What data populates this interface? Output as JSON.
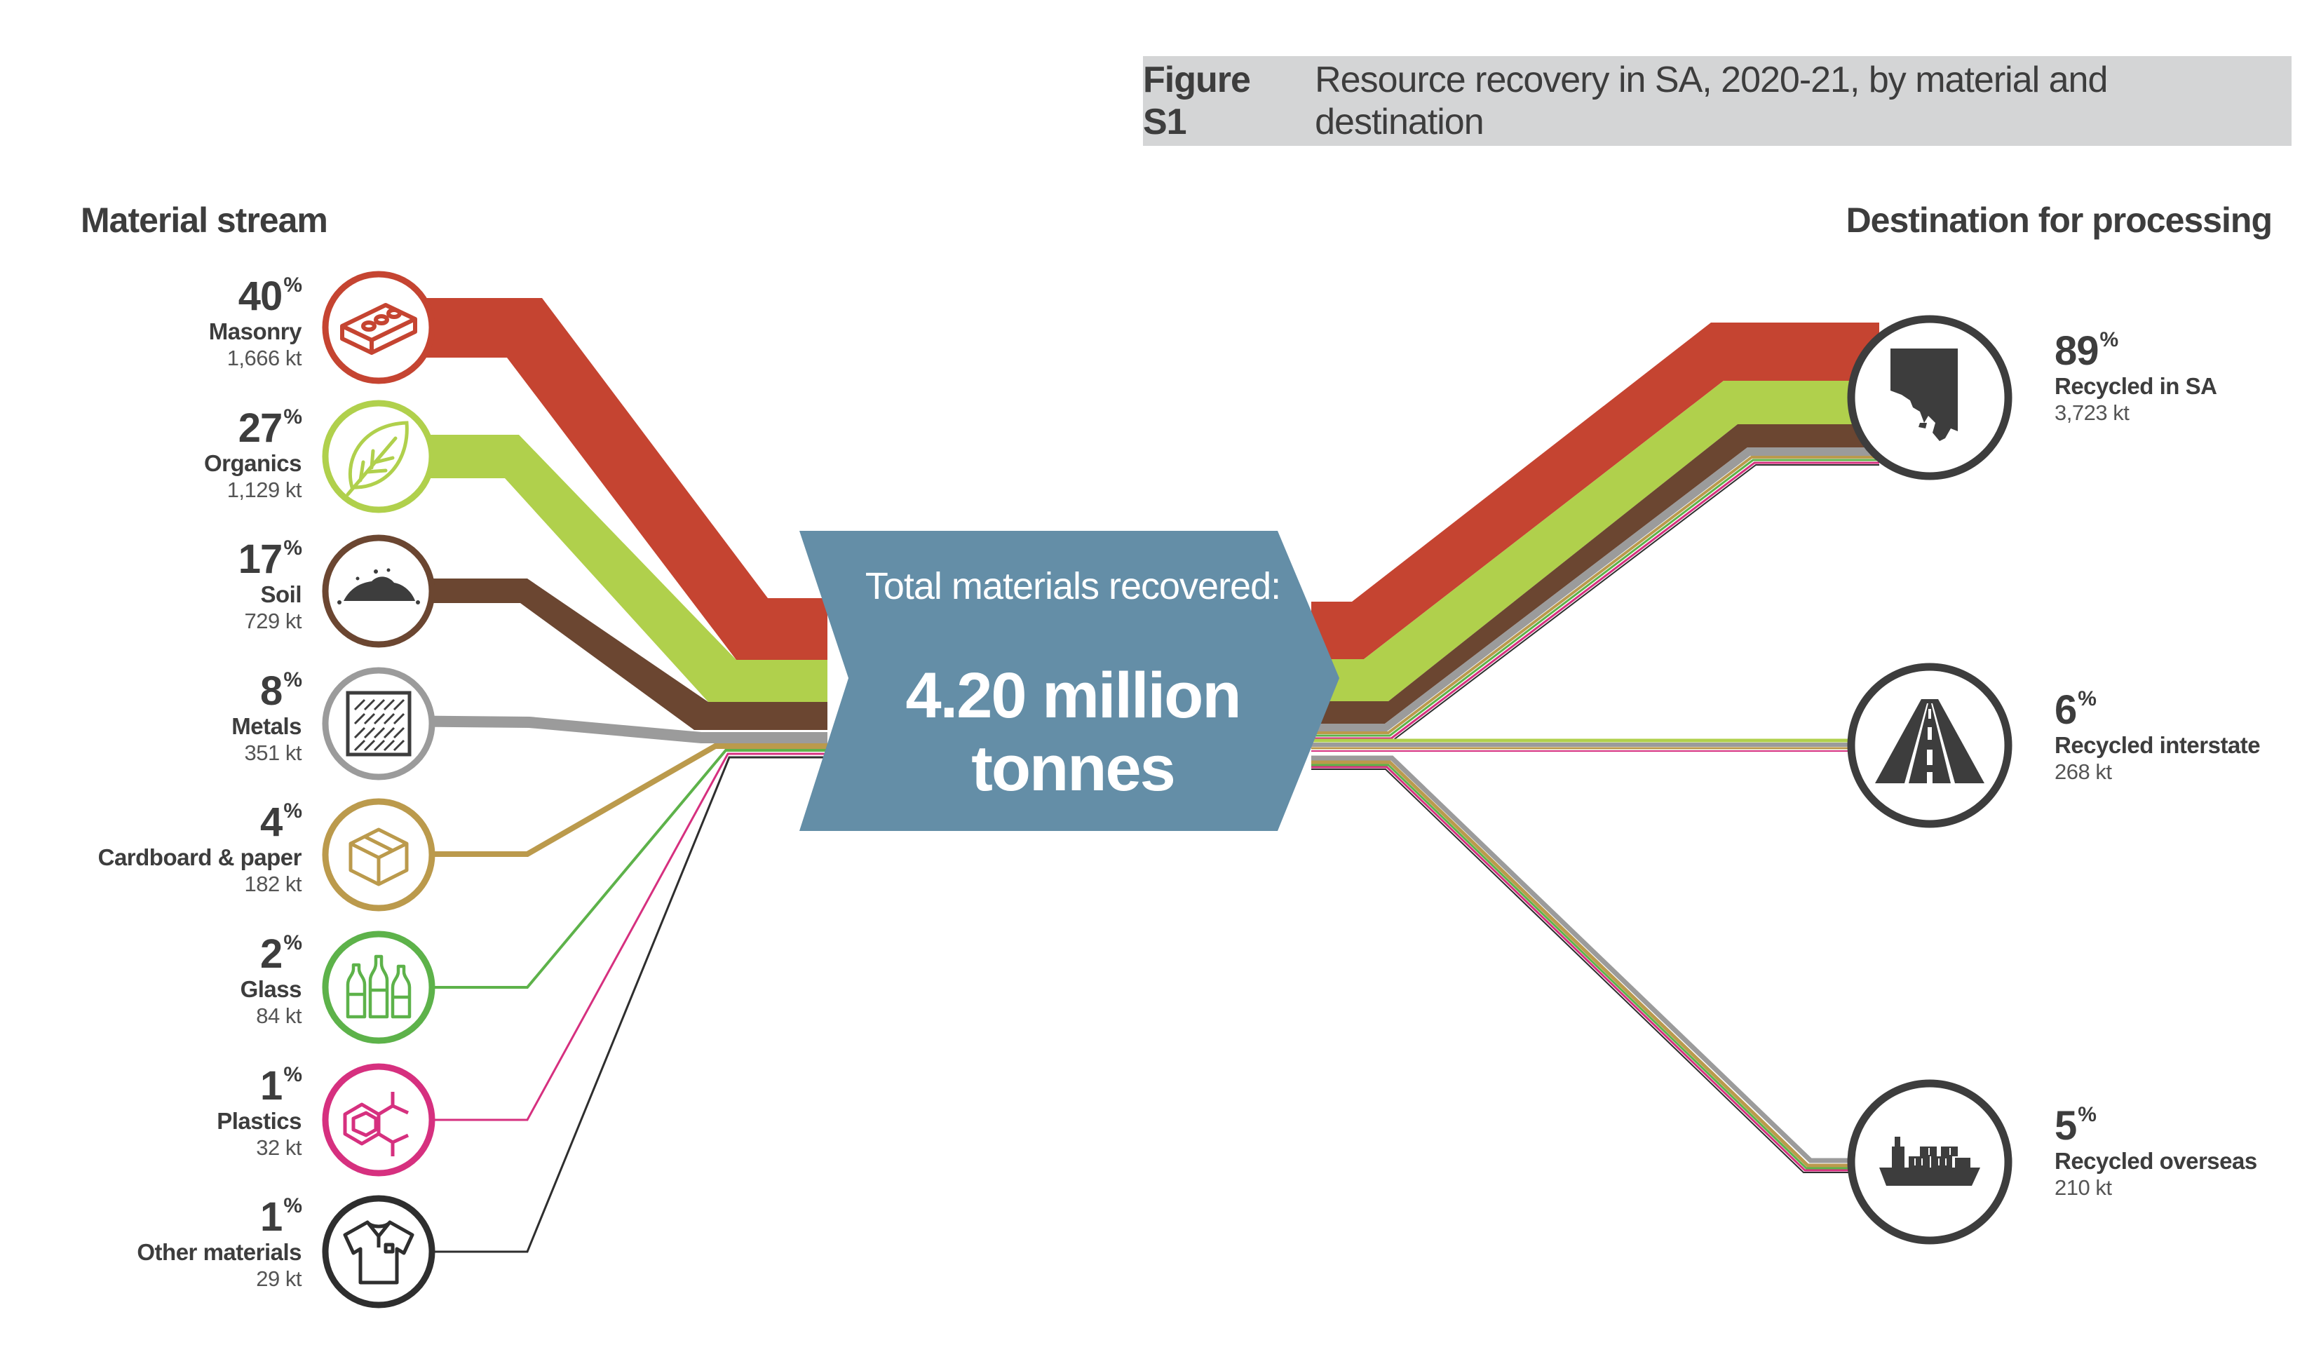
{
  "figure": {
    "number": "Figure S1",
    "title": "Resource recovery in SA, 2020-21, by material and destination"
  },
  "headings": {
    "left": "Material stream",
    "right": "Destination for processing"
  },
  "center": {
    "title": "Total materials recovered:",
    "value": "4.20 million tonnes",
    "fill_color": "#648ea7"
  },
  "materials": [
    {
      "percent": "40",
      "name": "Masonry",
      "amount": "1,666 kt",
      "color": "#c54431",
      "icon": "brick-icon"
    },
    {
      "percent": "27",
      "name": "Organics",
      "amount": "1,129 kt",
      "color": "#b0d04c",
      "icon": "leaf-icon"
    },
    {
      "percent": "17",
      "name": "Soil",
      "amount": "729 kt",
      "color": "#6b4631",
      "icon": "soil-pile-icon"
    },
    {
      "percent": "8",
      "name": "Metals",
      "amount": "351 kt",
      "color": "#9b9b9b",
      "icon": "metal-plate-icon"
    },
    {
      "percent": "4",
      "name": "Cardboard & paper",
      "amount": "182 kt",
      "color": "#bb9a4c",
      "icon": "box-icon"
    },
    {
      "percent": "2",
      "name": "Glass",
      "amount": "84 kt",
      "color": "#5db24a",
      "icon": "bottles-icon"
    },
    {
      "percent": "1",
      "name": "Plastics",
      "amount": "32 kt",
      "color": "#d6307f",
      "icon": "molecule-icon"
    },
    {
      "percent": "1",
      "name": "Other materials",
      "amount": "29 kt",
      "color": "#2e2e2e",
      "icon": "tshirt-icon"
    }
  ],
  "destinations": [
    {
      "percent": "89",
      "name": "Recycled in SA",
      "amount": "3,723 kt",
      "icon": "south-australia-map-icon"
    },
    {
      "percent": "6",
      "name": "Recycled interstate",
      "amount": "268 kt",
      "icon": "road-icon"
    },
    {
      "percent": "5",
      "name": "Recycled overseas",
      "amount": "210 kt",
      "icon": "cargo-ship-icon"
    }
  ],
  "percent_sign": "%",
  "icon_ring_color": "#3d3d3d"
}
